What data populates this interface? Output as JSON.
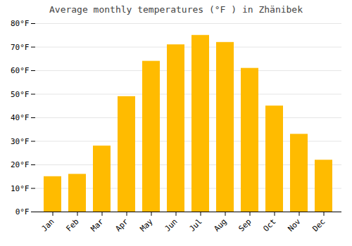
{
  "chart_data": {
    "type": "bar",
    "title": "Average monthly temperatures (°F ) in Zhänibek",
    "categories": [
      "Jan",
      "Feb",
      "Mar",
      "Apr",
      "May",
      "Jun",
      "Jul",
      "Aug",
      "Sep",
      "Oct",
      "Nov",
      "Dec"
    ],
    "values": [
      15,
      16,
      28,
      49,
      64,
      71,
      75,
      72,
      61,
      45,
      33,
      22
    ],
    "color": "#FFBB00",
    "ylim": [
      0,
      80
    ],
    "yticks": [
      {
        "value": 0,
        "label": "0°F"
      },
      {
        "value": 10,
        "label": "10°F"
      },
      {
        "value": 20,
        "label": "20°F"
      },
      {
        "value": 30,
        "label": "30°F"
      },
      {
        "value": 40,
        "label": "40°F"
      },
      {
        "value": 50,
        "label": "50°F"
      },
      {
        "value": 60,
        "label": "60°F"
      },
      {
        "value": 70,
        "label": "70°F"
      },
      {
        "value": 80,
        "label": "80°F"
      }
    ],
    "grid": true
  }
}
